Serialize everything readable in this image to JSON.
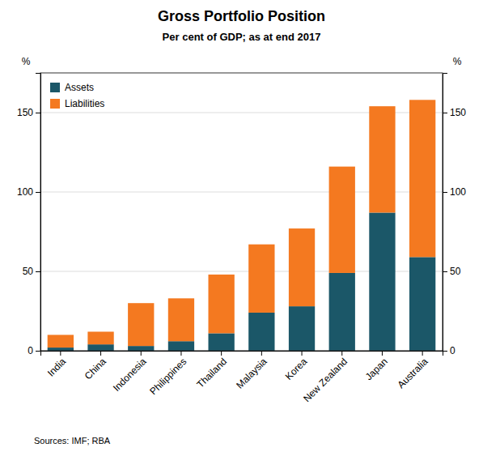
{
  "chart_data": {
    "type": "bar",
    "stacked": true,
    "title": "Gross Portfolio Position",
    "subtitle": "Per cent of GDP; as at end 2017",
    "ylabel": "%",
    "y2label": "%",
    "source": "Sources:  IMF; RBA",
    "categories": [
      "India",
      "China",
      "Indonesia",
      "Philippines",
      "Thailand",
      "Malaysia",
      "Korea",
      "New Zealand",
      "Japan",
      "Australia"
    ],
    "series": [
      {
        "name": "Assets",
        "color": "#1b5768",
        "values": [
          2,
          4,
          3,
          6,
          11,
          24,
          28,
          49,
          87,
          59
        ]
      },
      {
        "name": "Liabilities",
        "color": "#f47920",
        "values": [
          8,
          8,
          27,
          27,
          37,
          43,
          49,
          67,
          67,
          99
        ]
      }
    ],
    "ylim": [
      0,
      175
    ],
    "yticks": [
      0,
      50,
      100,
      150
    ],
    "y2lim": [
      0,
      175
    ],
    "y2ticks": [
      0,
      50,
      100,
      150
    ],
    "grid": true,
    "legend": "upper left"
  }
}
